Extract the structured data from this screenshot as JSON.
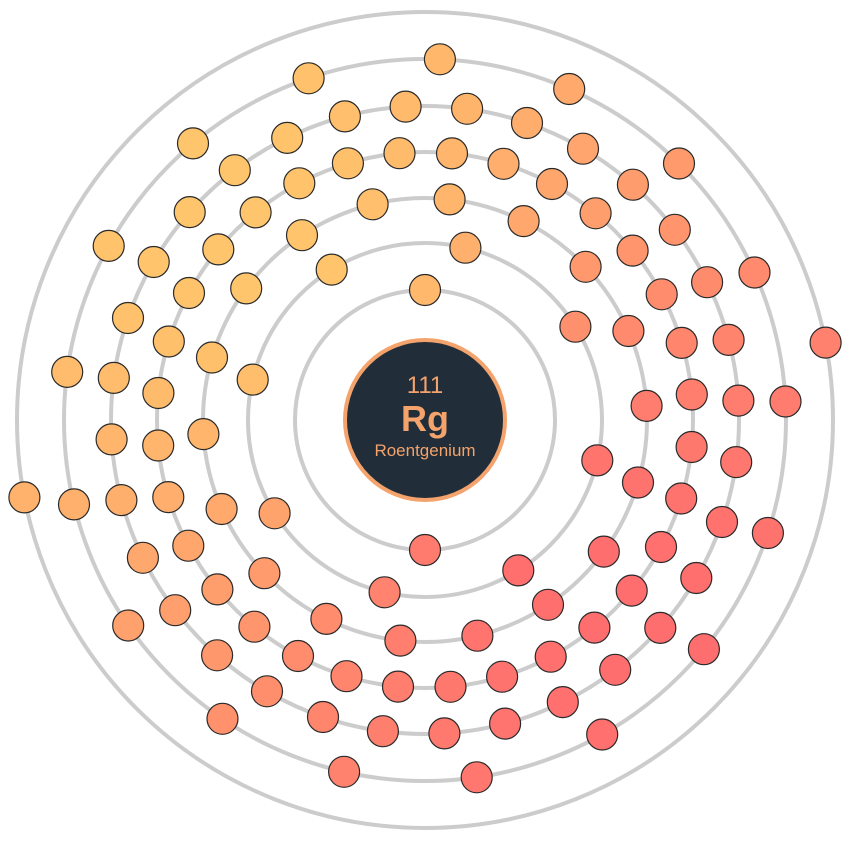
{
  "element": {
    "atomic_number": "111",
    "symbol": "Rg",
    "name": "Roentgenium"
  },
  "shells": {
    "electron_counts": [
      2,
      8,
      18,
      32,
      32,
      17,
      2
    ],
    "total_electrons": 111
  },
  "colors": {
    "nucleus_fill": "#212d38",
    "accent": "#f4a36c",
    "electron_start": "#ffc56c",
    "electron_end": "#ff6e6e",
    "shell_ring": "#cccccc"
  }
}
